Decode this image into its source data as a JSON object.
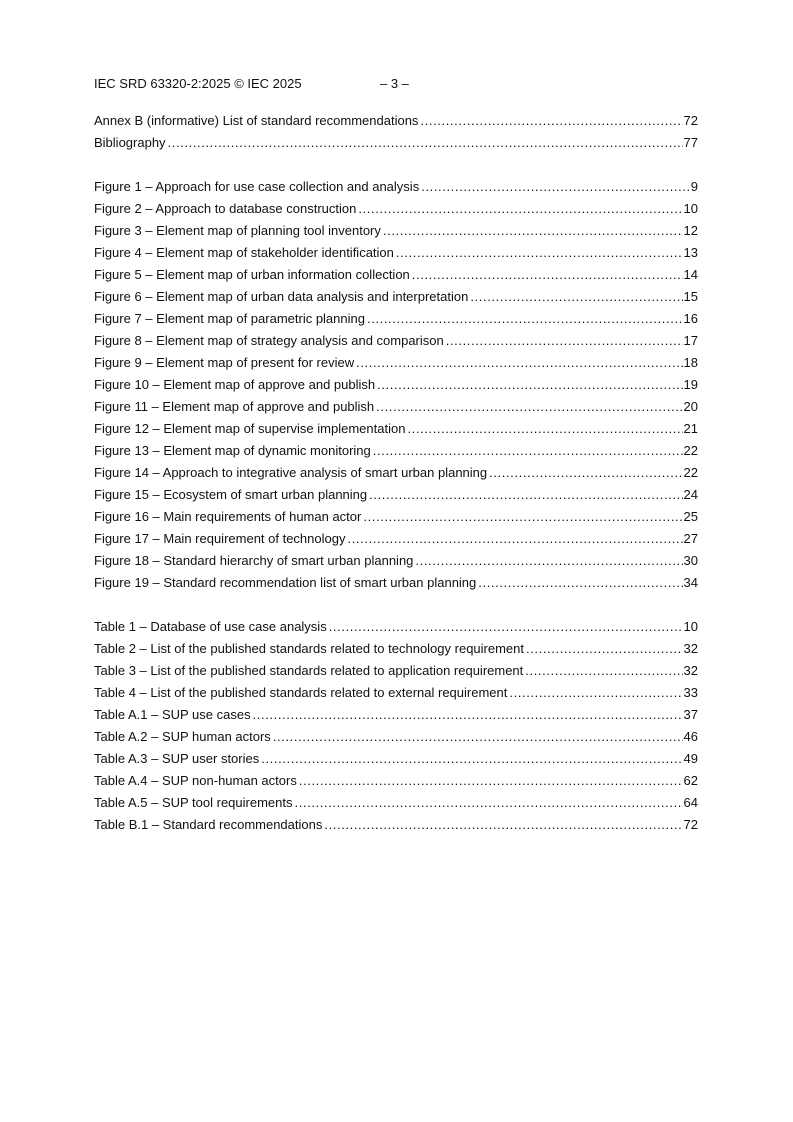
{
  "header": {
    "left": "IEC SRD 63320-2:2025 © IEC 2025",
    "center": "– 3 –"
  },
  "annex_entries": [
    {
      "title": "Annex B (informative)  List of standard recommendations",
      "page": "72"
    },
    {
      "title": "Bibliography",
      "page": "77"
    }
  ],
  "figure_entries": [
    {
      "title": "Figure 1 – Approach for use case collection and analysis",
      "page": "9"
    },
    {
      "title": "Figure 2 – Approach to database construction",
      "page": "10"
    },
    {
      "title": "Figure 3 – Element map of planning tool inventory",
      "page": "12"
    },
    {
      "title": "Figure 4 – Element map of stakeholder identification",
      "page": "13"
    },
    {
      "title": "Figure 5 – Element map of urban information collection",
      "page": "14"
    },
    {
      "title": "Figure 6 – Element map of urban data analysis and interpretation",
      "page": "15"
    },
    {
      "title": "Figure 7 – Element map of parametric planning",
      "page": "16"
    },
    {
      "title": "Figure 8 – Element map of strategy analysis and comparison",
      "page": "17"
    },
    {
      "title": "Figure 9 – Element map of present for review",
      "page": "18"
    },
    {
      "title": "Figure 10 – Element map of approve and publish",
      "page": "19"
    },
    {
      "title": "Figure 11 – Element map of approve and publish",
      "page": "20"
    },
    {
      "title": "Figure 12 – Element map of supervise implementation",
      "page": "21"
    },
    {
      "title": "Figure 13 – Element map of dynamic monitoring",
      "page": "22"
    },
    {
      "title": "Figure 14 – Approach to integrative analysis of smart urban planning",
      "page": "22"
    },
    {
      "title": "Figure 15 – Ecosystem of smart urban planning",
      "page": "24"
    },
    {
      "title": "Figure 16 – Main requirements of human actor",
      "page": "25"
    },
    {
      "title": "Figure 17 – Main requirement of technology",
      "page": "27"
    },
    {
      "title": "Figure 18 – Standard hierarchy of smart urban planning",
      "page": "30"
    },
    {
      "title": "Figure 19 – Standard recommendation list of smart urban planning",
      "page": "34"
    }
  ],
  "table_entries": [
    {
      "title": "Table 1 – Database of use case analysis",
      "page": "10"
    },
    {
      "title": "Table 2 – List of the published standards related to technology requirement",
      "page": "32"
    },
    {
      "title": "Table 3 – List of the published standards related to application requirement",
      "page": "32"
    },
    {
      "title": "Table 4 – List of the published standards related to external requirement",
      "page": "33"
    },
    {
      "title": "Table A.1 – SUP use cases",
      "page": "37"
    },
    {
      "title": "Table A.2 – SUP human actors",
      "page": "46"
    },
    {
      "title": "Table A.3 – SUP user stories",
      "page": "49"
    },
    {
      "title": "Table A.4 – SUP non-human actors",
      "page": "62"
    },
    {
      "title": "Table A.5 – SUP tool requirements",
      "page": "64"
    },
    {
      "title": "Table B.1 – Standard recommendations",
      "page": "72"
    }
  ]
}
